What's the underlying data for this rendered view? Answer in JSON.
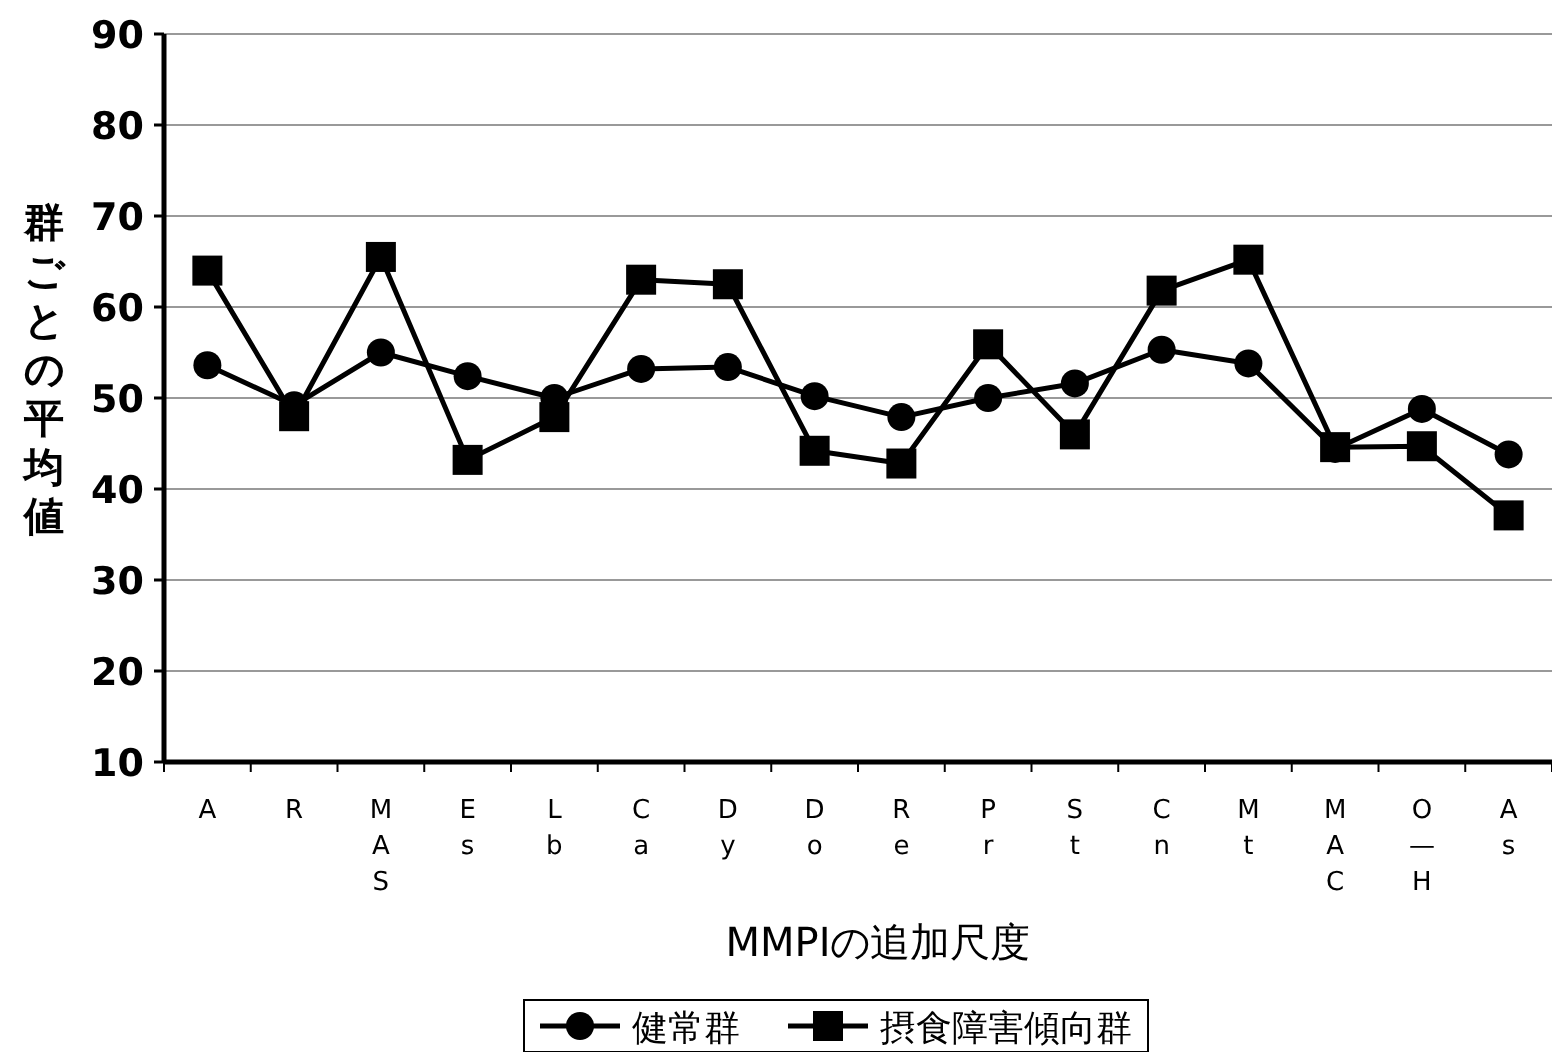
{
  "chart_data": {
    "type": "line",
    "xlabel": "MMPIの追加尺度",
    "ylabel": "群ごとの平均値",
    "categories": [
      "A",
      "R",
      "MAS",
      "Es",
      "Lb",
      "Ca",
      "Dy",
      "Do",
      "Re",
      "Pr",
      "St",
      "Cn",
      "Mt",
      "MAC",
      "O—H",
      "As"
    ],
    "series": [
      {
        "name": "健常群",
        "color": "#000000",
        "marker": "circle",
        "values": [
          53.6,
          49.2,
          55.0,
          52.4,
          50.0,
          53.2,
          53.4,
          50.2,
          47.9,
          50.0,
          51.6,
          55.3,
          53.8,
          44.4,
          48.8,
          43.8
        ]
      },
      {
        "name": "摂食障害傾向群",
        "color": "#000000",
        "marker": "square",
        "values": [
          64.0,
          48.0,
          65.5,
          43.2,
          47.9,
          63.0,
          62.5,
          44.2,
          42.8,
          55.9,
          46.0,
          61.8,
          65.2,
          44.6,
          44.7,
          37.1
        ]
      }
    ],
    "ylim": [
      10,
      90
    ],
    "yticks": [
      10,
      20,
      30,
      40,
      50,
      60,
      70,
      80,
      90
    ],
    "grid": "y",
    "legend": "bottom",
    "line_style": "solid"
  }
}
